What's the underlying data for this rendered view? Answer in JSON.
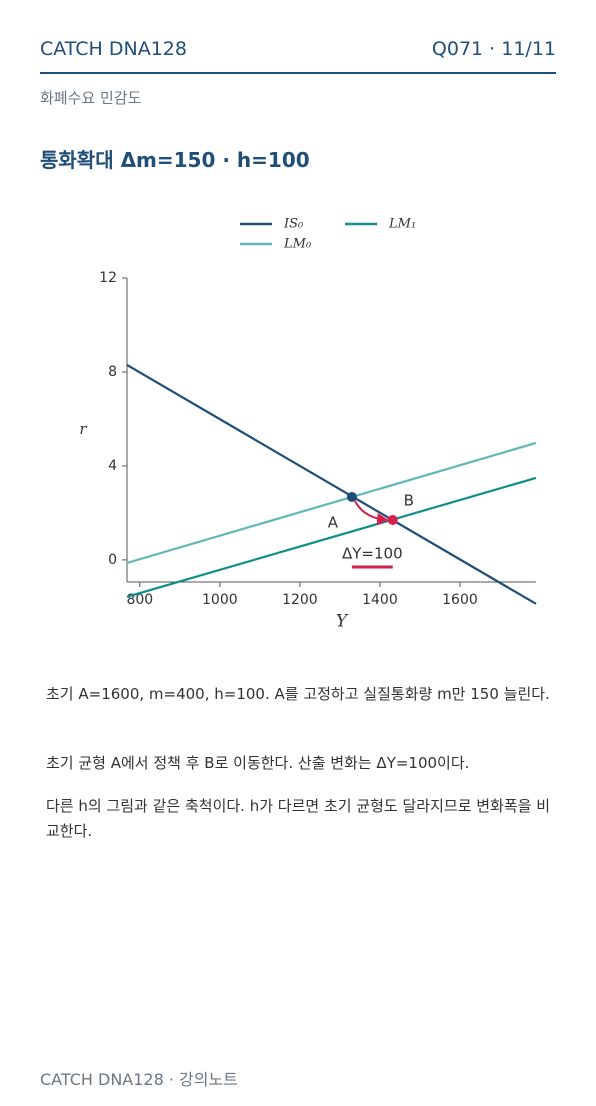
{
  "header": {
    "brand": "CATCH DNA128",
    "page": "Q071 · 11/11"
  },
  "subtitle": "화폐수요 민감도",
  "title": "통화확대 Δm=150 · h=100",
  "chart_data": {
    "type": "line",
    "xlabel": "Y",
    "ylabel": "r",
    "xlim": [
      768,
      1790
    ],
    "ylim": [
      -0.94,
      12
    ],
    "xticks": [
      800,
      1000,
      1200,
      1400,
      1600
    ],
    "yticks": [
      0,
      4,
      8,
      12
    ],
    "series": [
      {
        "name": "IS₀",
        "color": "#1f4e79",
        "x": [
          768,
          1790
        ],
        "values": [
          8.3,
          -1.87
        ]
      },
      {
        "name": "LM₀",
        "color": "#5fb8b8",
        "x": [
          768,
          1790
        ],
        "values": [
          -0.13,
          4.98
        ]
      },
      {
        "name": "LM₁",
        "color": "#0e8f8a",
        "x": [
          768,
          1790
        ],
        "values": [
          -1.57,
          3.49
        ]
      }
    ],
    "points": [
      {
        "label": "A",
        "x": 1330,
        "y": 2.68,
        "color": "#1f4e79"
      },
      {
        "label": "B",
        "x": 1432,
        "y": 1.7,
        "color": "#d6204b"
      }
    ],
    "annotation": "ΔY=100"
  },
  "paragraphs": [
    "초기 A=1600, m=400, h=100. A를 고정하고 실질통화량 m만 150 늘린다.",
    "초기 균형 A에서 정책 후 B로 이동한다. 산출 변화는 ΔY=100이다.",
    "다른 h의 그림과 같은 축척이다. h가 다르면 초기 균형도 달라지므로 변화폭을 비교한다."
  ],
  "footer": "CATCH DNA128 · 강의노트"
}
